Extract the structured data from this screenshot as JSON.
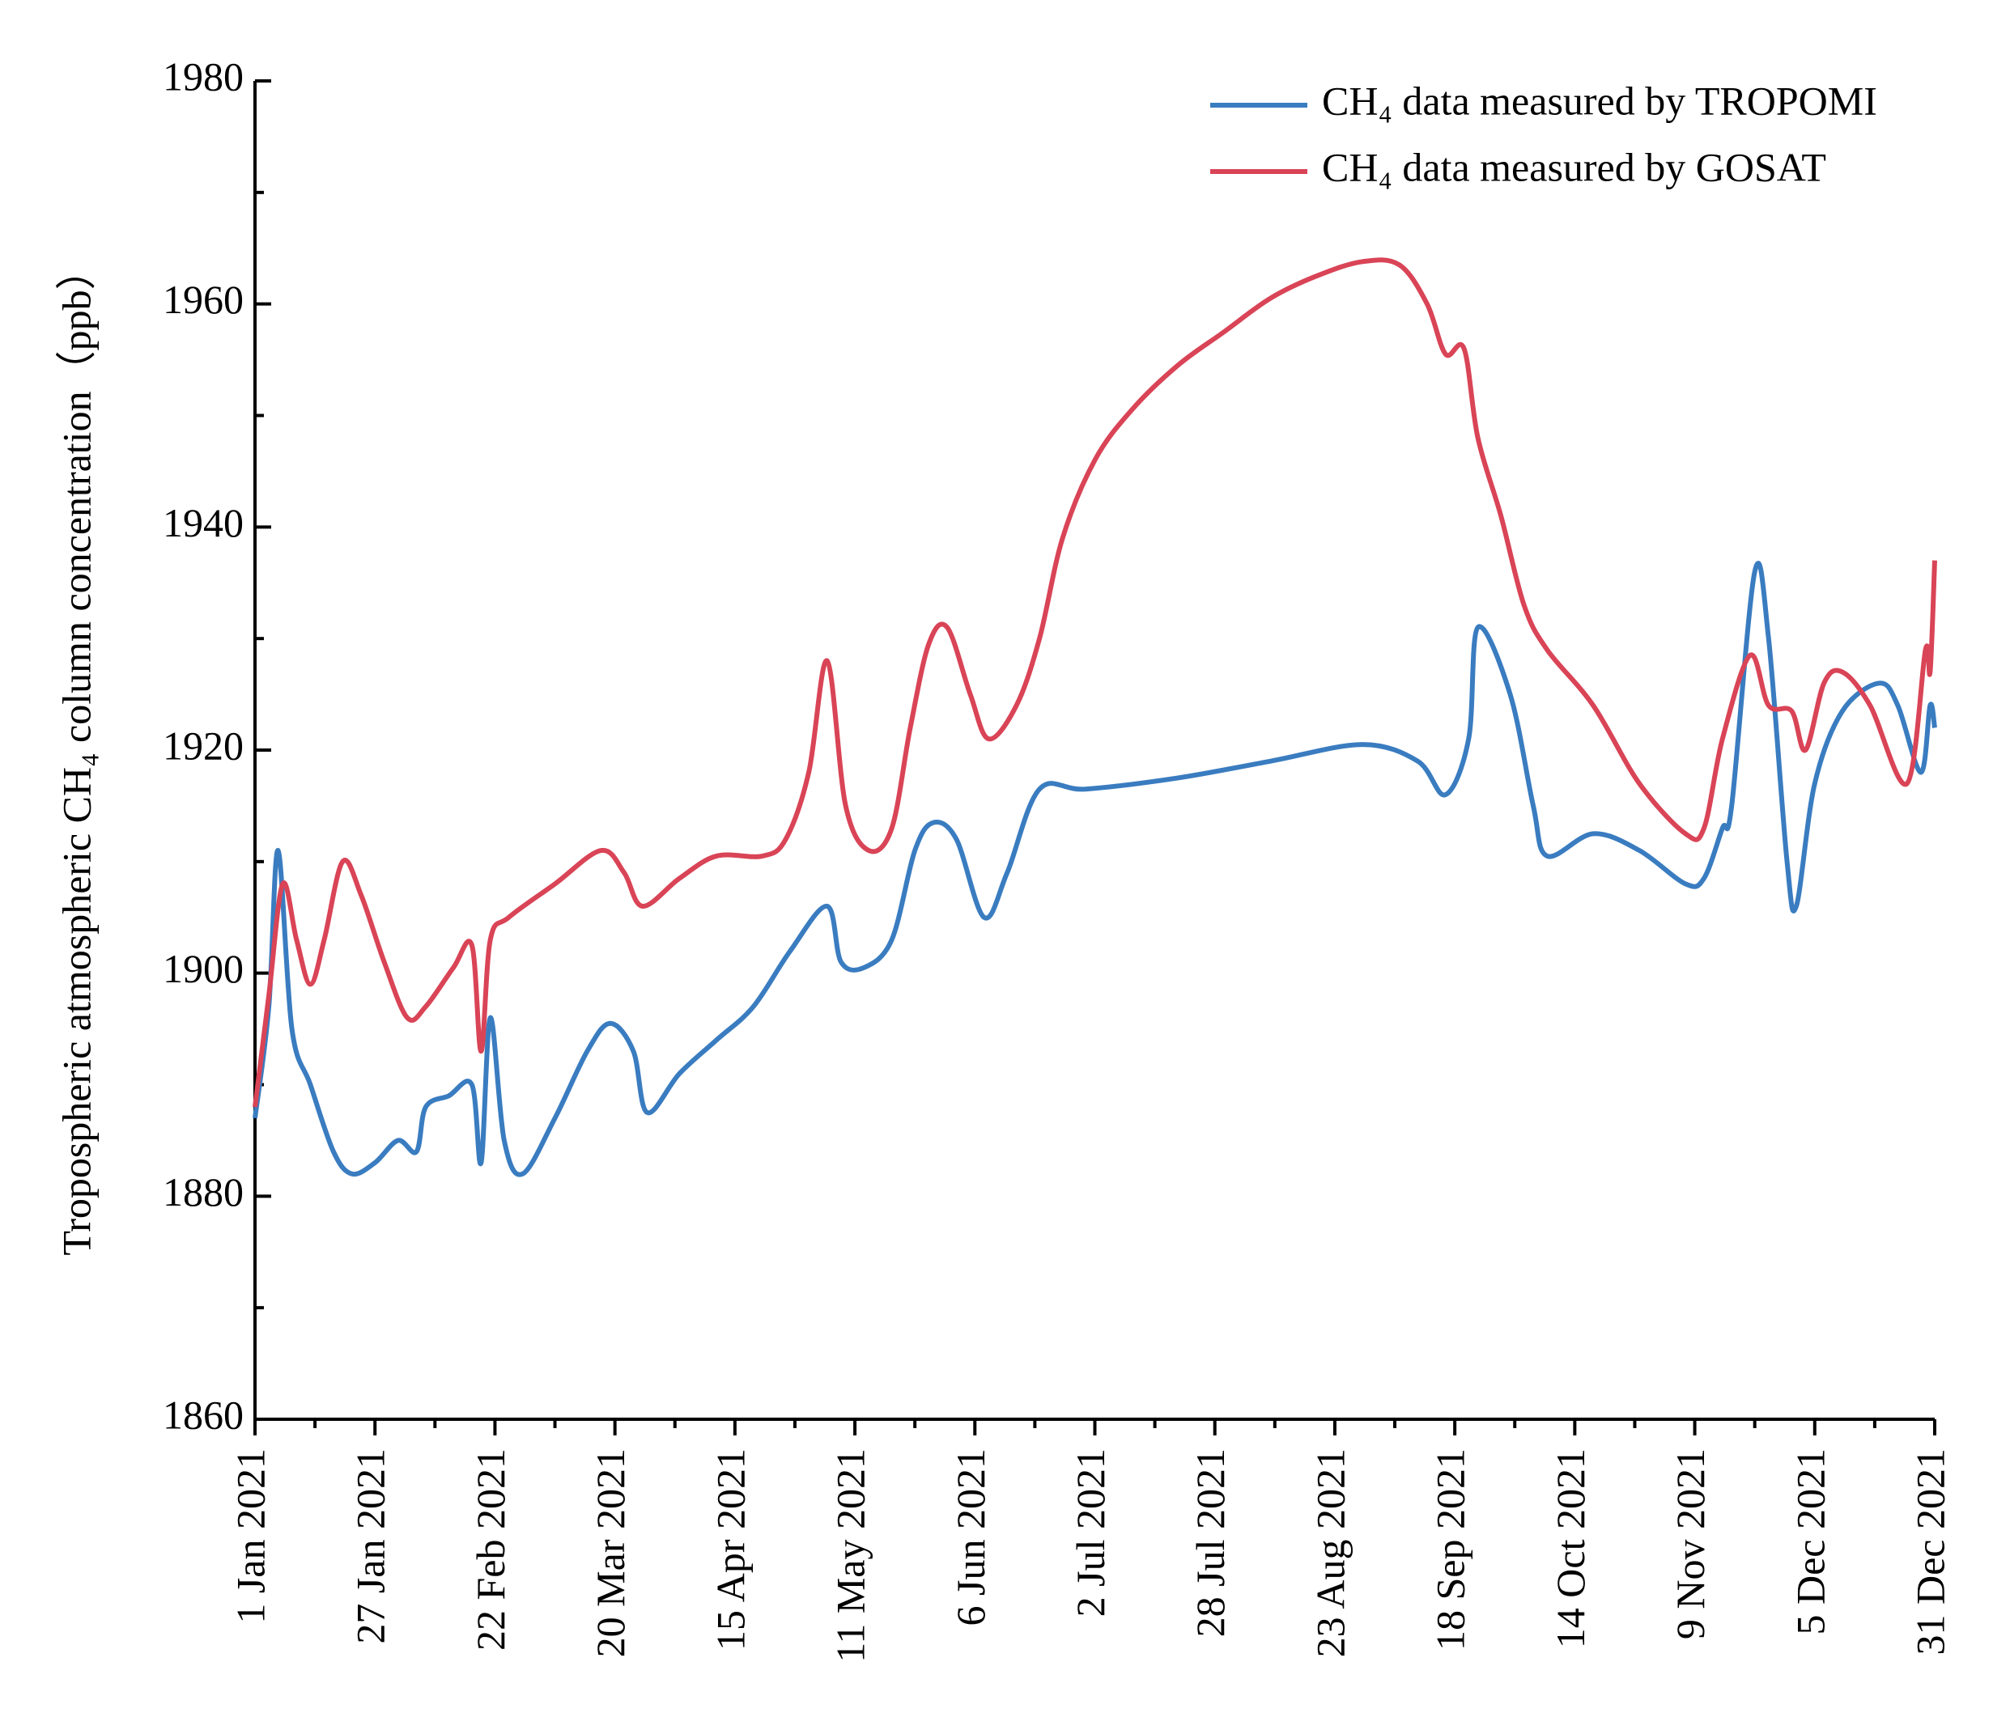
{
  "chart_data": {
    "type": "line",
    "y_label": "Tropospheric atmospheric CH₄ column concentration（ppb）",
    "xlim": [
      "2021-01-01",
      "2021-12-31"
    ],
    "xticks": [
      {
        "value": "2021-01-01",
        "label": "1 Jan 2021"
      },
      {
        "value": "2021-01-27",
        "label": "27 Jan 2021"
      },
      {
        "value": "2021-02-22",
        "label": "22 Feb 2021"
      },
      {
        "value": "2021-03-20",
        "label": "20 Mar 2021"
      },
      {
        "value": "2021-04-15",
        "label": "15 Apr 2021"
      },
      {
        "value": "2021-05-11",
        "label": "11 May 2021"
      },
      {
        "value": "2021-06-06",
        "label": "6 Jun 2021"
      },
      {
        "value": "2021-07-02",
        "label": "2 Jul 2021"
      },
      {
        "value": "2021-07-28",
        "label": "28 Jul 2021"
      },
      {
        "value": "2021-08-23",
        "label": "23 Aug 2021"
      },
      {
        "value": "2021-09-18",
        "label": "18 Sep 2021"
      },
      {
        "value": "2021-10-14",
        "label": "14 Oct 2021"
      },
      {
        "value": "2021-11-09",
        "label": "9 Nov 2021"
      },
      {
        "value": "2021-12-05",
        "label": "5 Dec 2021"
      },
      {
        "value": "2021-12-31",
        "label": "31 Dec 2021"
      }
    ],
    "ylim": [
      1860,
      1980
    ],
    "yticks": [
      1860,
      1880,
      1900,
      1920,
      1940,
      1960,
      1980
    ],
    "legend": "upper right",
    "series": [
      {
        "name": "CH₄ data measured by TROPOMI",
        "color": "#3a7cc0",
        "x": [
          "2021-01-01",
          "2021-01-04",
          "2021-01-06",
          "2021-01-09",
          "2021-01-13",
          "2021-01-18",
          "2021-01-22",
          "2021-01-27",
          "2021-02-01",
          "2021-02-05",
          "2021-02-07",
          "2021-02-12",
          "2021-02-17",
          "2021-02-19",
          "2021-02-21",
          "2021-02-24",
          "2021-02-28",
          "2021-03-07",
          "2021-03-14",
          "2021-03-19",
          "2021-03-24",
          "2021-03-27",
          "2021-04-03",
          "2021-04-11",
          "2021-04-19",
          "2021-04-27",
          "2021-05-05",
          "2021-05-08",
          "2021-05-13",
          "2021-05-19",
          "2021-05-24",
          "2021-05-28",
          "2021-06-02",
          "2021-06-08",
          "2021-06-13",
          "2021-06-20",
          "2021-06-30",
          "2021-07-20",
          "2021-08-09",
          "2021-08-29",
          "2021-09-10",
          "2021-09-16",
          "2021-09-21",
          "2021-09-23",
          "2021-09-30",
          "2021-10-05",
          "2021-10-08",
          "2021-10-18",
          "2021-10-28",
          "2021-11-07",
          "2021-11-11",
          "2021-11-15",
          "2021-11-17",
          "2021-11-22",
          "2021-11-25",
          "2021-11-29",
          "2021-12-01",
          "2021-12-05",
          "2021-12-11",
          "2021-12-19",
          "2021-12-23",
          "2021-12-28",
          "2021-12-30",
          "2021-12-31"
        ],
        "values": [
          1887,
          1897,
          1911,
          1895,
          1890,
          1884,
          1882,
          1883,
          1885,
          1884,
          1888,
          1889,
          1890,
          1883,
          1896,
          1885,
          1882,
          1887,
          1893,
          1895.5,
          1893,
          1887.5,
          1891,
          1894,
          1897,
          1902,
          1906,
          1901,
          1900.5,
          1903,
          1911,
          1913.5,
          1912,
          1905,
          1909,
          1916.5,
          1916.5,
          1917.5,
          1919,
          1920.5,
          1919,
          1916,
          1921,
          1931,
          1925,
          1915,
          1910.5,
          1912.5,
          1911,
          1908,
          1908.5,
          1913,
          1915,
          1936,
          1930,
          1910,
          1906,
          1917,
          1923.5,
          1926,
          1924,
          1918,
          1924,
          1922
        ]
      },
      {
        "name": "CH₄ data measured by GOSAT",
        "color": "#d94456",
        "x": [
          "2021-01-01",
          "2021-01-04",
          "2021-01-07",
          "2021-01-10",
          "2021-01-13",
          "2021-01-16",
          "2021-01-20",
          "2021-01-24",
          "2021-01-29",
          "2021-02-03",
          "2021-02-07",
          "2021-02-13",
          "2021-02-17",
          "2021-02-19",
          "2021-02-21",
          "2021-02-25",
          "2021-03-07",
          "2021-03-17",
          "2021-03-22",
          "2021-03-26",
          "2021-04-03",
          "2021-04-11",
          "2021-04-21",
          "2021-04-26",
          "2021-05-01",
          "2021-05-05",
          "2021-05-09",
          "2021-05-14",
          "2021-05-19",
          "2021-05-23",
          "2021-05-27",
          "2021-05-31",
          "2021-06-05",
          "2021-06-09",
          "2021-06-15",
          "2021-06-20",
          "2021-06-25",
          "2021-07-02",
          "2021-07-10",
          "2021-07-20",
          "2021-07-30",
          "2021-08-09",
          "2021-08-19",
          "2021-08-29",
          "2021-09-06",
          "2021-09-12",
          "2021-09-16",
          "2021-09-20",
          "2021-09-23",
          "2021-09-28",
          "2021-10-03",
          "2021-10-08",
          "2021-10-18",
          "2021-10-28",
          "2021-11-07",
          "2021-11-11",
          "2021-11-15",
          "2021-11-21",
          "2021-11-25",
          "2021-11-30",
          "2021-12-03",
          "2021-12-07",
          "2021-12-11",
          "2021-12-17",
          "2021-12-25",
          "2021-12-29",
          "2021-12-30",
          "2021-12-31"
        ],
        "values": [
          1888,
          1898,
          1908,
          1903,
          1899,
          1903,
          1910,
          1907,
          1901,
          1896,
          1897,
          1900.5,
          1902.5,
          1893,
          1903,
          1905,
          1908,
          1911,
          1909,
          1906,
          1908.5,
          1910.5,
          1910.5,
          1912,
          1918,
          1928,
          1915,
          1911,
          1913,
          1922,
          1929.5,
          1931,
          1925,
          1921,
          1924,
          1930,
          1939,
          1946,
          1950.5,
          1954.5,
          1957.5,
          1960.5,
          1962.5,
          1963.8,
          1963.5,
          1960,
          1955.5,
          1956,
          1948,
          1941,
          1933,
          1929,
          1924,
          1917,
          1912.5,
          1913,
          1921,
          1928.5,
          1924,
          1923.5,
          1920,
          1926,
          1927,
          1924,
          1917,
          1929,
          1927,
          1937
        ]
      }
    ]
  }
}
